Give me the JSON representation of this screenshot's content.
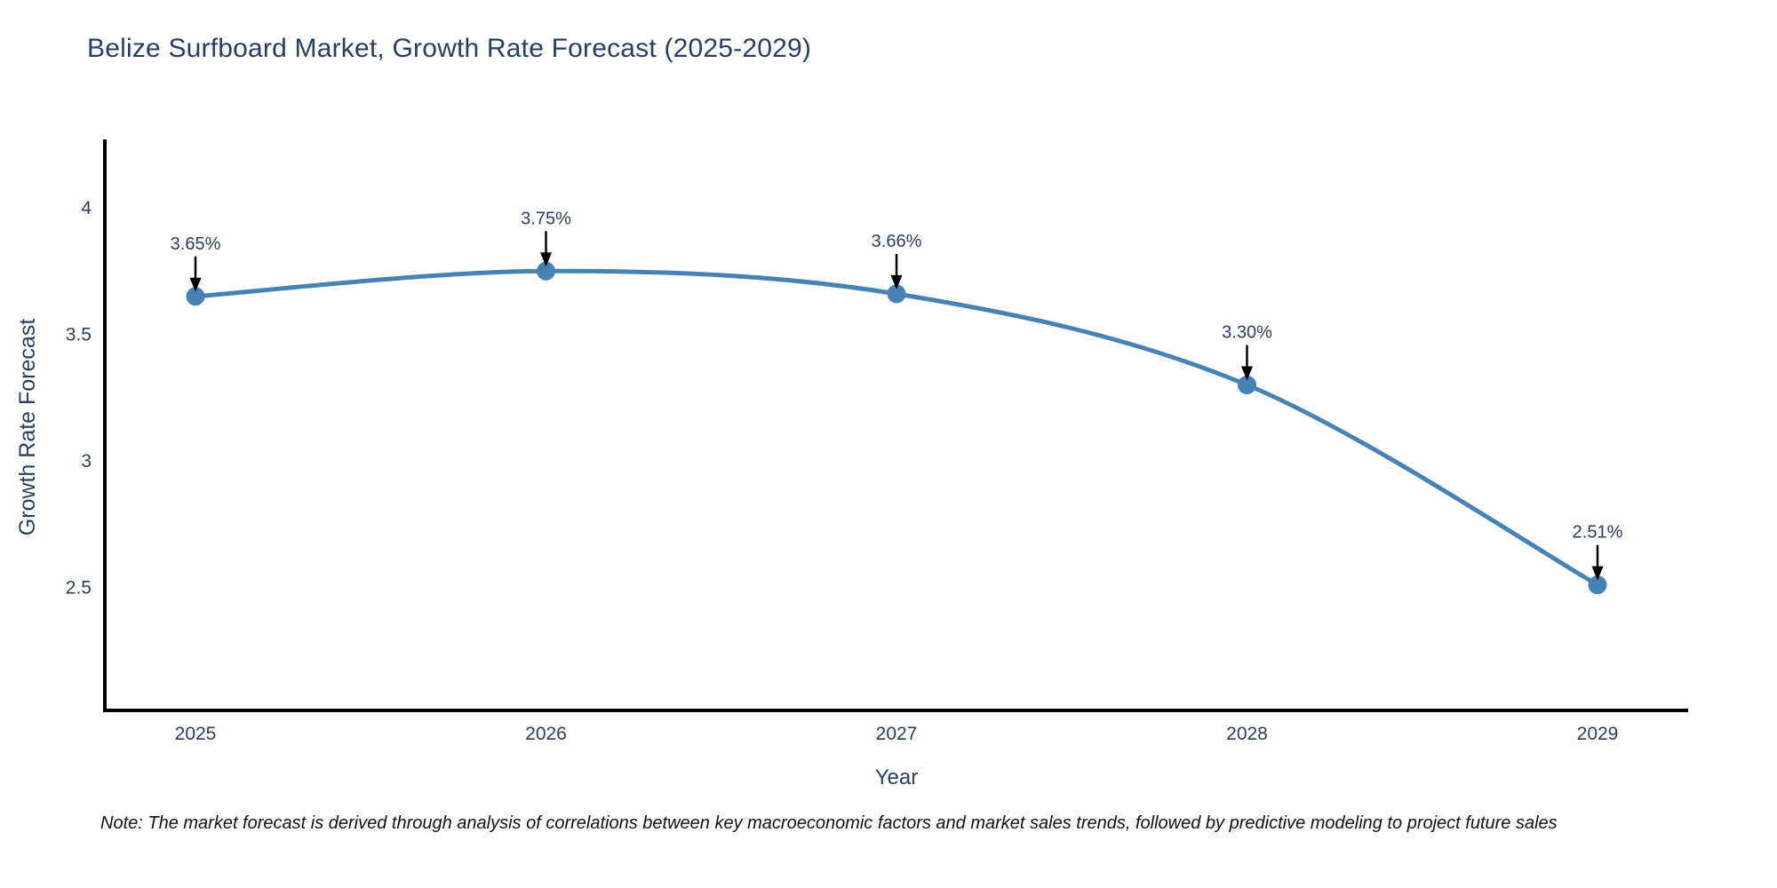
{
  "chart_data": {
    "type": "line",
    "title": "Belize Surfboard Market, Growth Rate Forecast (2025-2029)",
    "xlabel": "Year",
    "ylabel": "Growth Rate Forecast",
    "x": [
      2025,
      2026,
      2027,
      2028,
      2029
    ],
    "values": [
      3.65,
      3.75,
      3.66,
      3.3,
      2.51
    ],
    "point_labels": [
      "3.65%",
      "3.75%",
      "3.66%",
      "3.30%",
      "2.51%"
    ],
    "xtick_labels": [
      "2025",
      "2026",
      "2027",
      "2028",
      "2029"
    ],
    "yticks": [
      2.5,
      3,
      3.5,
      4
    ],
    "ytick_labels": [
      "2.5",
      "3",
      "3.5",
      "4"
    ],
    "ylim": [
      2.01,
      4.27
    ],
    "line_shape": "spline",
    "grid": false,
    "legend": "none",
    "annotation_style": "label-above-with-down-arrow",
    "colors": {
      "line": "#4682b4",
      "marker": "#4682b4",
      "axis": "#000000",
      "arrow": "#000000",
      "text": "#2a3f5f",
      "note_text": "#111111",
      "background": "#ffffff"
    }
  },
  "footer": {
    "note": "Note: The market forecast is derived through analysis of correlations between key macroeconomic factors and market sales trends, followed by predictive modeling to project future sales"
  }
}
